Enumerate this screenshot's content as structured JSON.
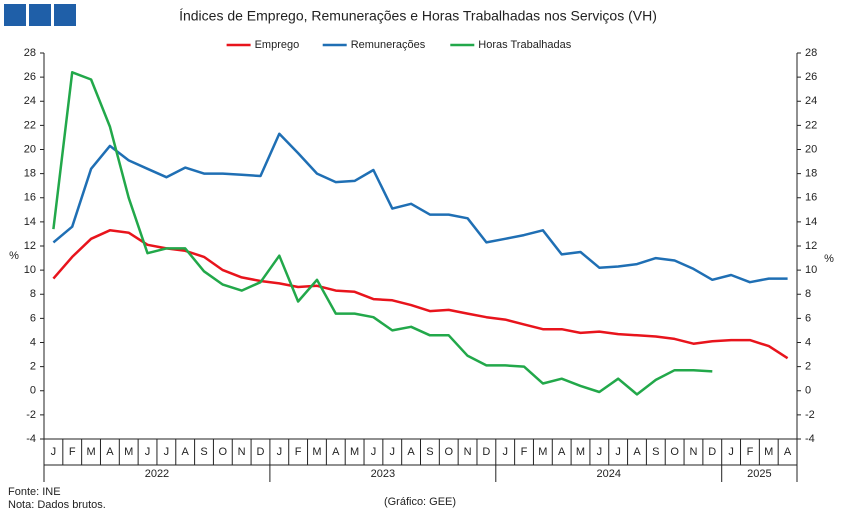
{
  "chart_data": {
    "type": "line",
    "title": "Índices de Emprego, Remunerações e Horas Trabalhadas nos Serviços (VH)",
    "categories": [
      "J",
      "F",
      "M",
      "A",
      "M",
      "J",
      "J",
      "A",
      "S",
      "O",
      "N",
      "D",
      "J",
      "F",
      "M",
      "A",
      "M",
      "J",
      "J",
      "A",
      "S",
      "O",
      "N",
      "D",
      "J",
      "F",
      "M",
      "A",
      "M",
      "J",
      "J",
      "A",
      "S",
      "O",
      "N",
      "D",
      "J",
      "F",
      "M",
      "A"
    ],
    "years": [
      "2022",
      "2023",
      "2024",
      "2025"
    ],
    "series": [
      {
        "name": "Emprego",
        "color": "#e8141c",
        "values": [
          9.3,
          11.1,
          12.6,
          13.3,
          13.1,
          12.1,
          11.8,
          11.6,
          11.1,
          10.0,
          9.4,
          9.1,
          8.9,
          8.6,
          8.7,
          8.3,
          8.2,
          7.6,
          7.5,
          7.1,
          6.6,
          6.7,
          6.4,
          6.1,
          5.9,
          5.5,
          5.1,
          5.1,
          4.8,
          4.9,
          4.7,
          4.6,
          4.5,
          4.3,
          3.9,
          4.1,
          4.2,
          4.2,
          3.7,
          2.7
        ]
      },
      {
        "name": "Remunerações",
        "color": "#1f6fb4",
        "values": [
          12.3,
          13.6,
          18.4,
          20.3,
          19.1,
          18.4,
          17.7,
          18.5,
          18.0,
          18.0,
          17.9,
          17.8,
          21.3,
          19.7,
          18.0,
          17.3,
          17.4,
          18.3,
          15.1,
          15.5,
          14.6,
          14.6,
          14.3,
          12.3,
          12.6,
          12.9,
          13.3,
          11.3,
          11.5,
          10.2,
          10.3,
          10.5,
          11.0,
          10.8,
          10.1,
          9.2,
          9.6,
          9.0,
          9.3,
          9.3
        ]
      },
      {
        "name": "Horas Trabalhadas",
        "color": "#22a84a",
        "values": [
          13.4,
          26.4,
          25.8,
          21.9,
          16.0,
          11.4,
          11.8,
          11.8,
          9.9,
          8.8,
          8.3,
          9.0,
          11.2,
          7.4,
          9.2,
          6.4,
          6.4,
          6.1,
          5.0,
          5.3,
          4.6,
          4.6,
          2.9,
          2.1,
          2.1,
          2.0,
          0.6,
          1.0,
          0.4,
          -0.1,
          1.0,
          -0.3,
          0.9,
          1.7,
          1.7,
          1.6,
          null,
          null,
          null,
          null
        ]
      }
    ],
    "ylabel": "%",
    "y2label": "%",
    "ylim": [
      -4,
      28
    ],
    "yticks": [
      -4,
      -2,
      0,
      2,
      4,
      6,
      8,
      10,
      12,
      14,
      16,
      18,
      20,
      22,
      24,
      26,
      28
    ],
    "y2lim": [
      -4,
      28
    ],
    "y2ticks": [
      -4,
      -2,
      0,
      2,
      4,
      6,
      8,
      10,
      12,
      14,
      16,
      18,
      20,
      22,
      24,
      26,
      28
    ],
    "grid": false,
    "legend": "top",
    "source": "Fonte: INE",
    "note": "Nota: Dados brutos.",
    "credit": "(Gráfico: GEE)"
  }
}
